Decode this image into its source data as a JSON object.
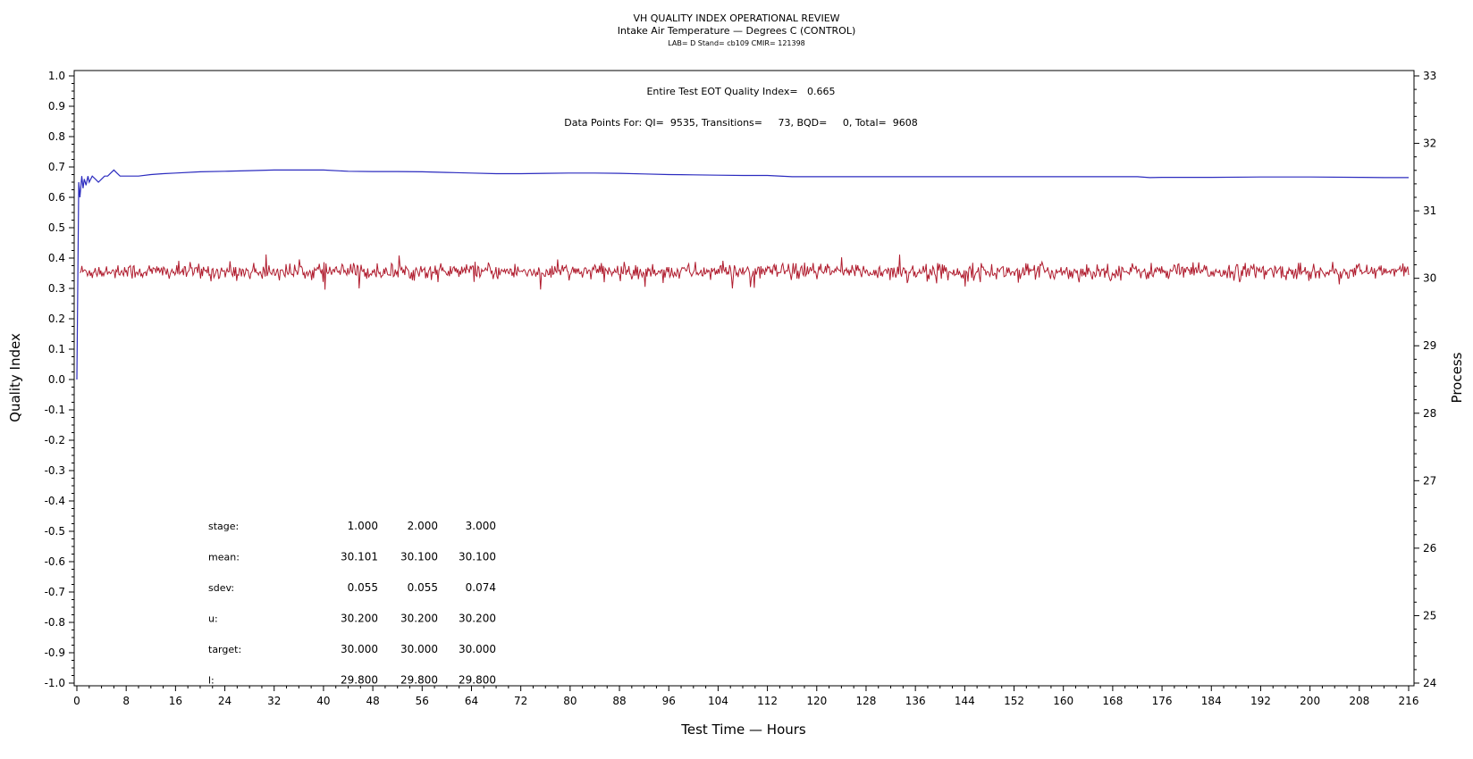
{
  "chart_data": {
    "type": "line",
    "title": "VH QUALITY INDEX OPERATIONAL REVIEW",
    "subtitle": "Intake Air Temperature — Degrees C (CONTROL)",
    "subtitle2": "LAB= D Stand= cb109 CMIR= 121398",
    "xlabel": "Test Time — Hours",
    "ylabel": "Quality Index",
    "y2label": "Process",
    "xlim": [
      0,
      216
    ],
    "ylim": [
      -1.0,
      1.0
    ],
    "y2lim": [
      24,
      33
    ],
    "x_ticks": [
      "0",
      "8",
      "16",
      "24",
      "32",
      "40",
      "48",
      "56",
      "64",
      "72",
      "80",
      "88",
      "96",
      "104",
      "112",
      "120",
      "128",
      "136",
      "144",
      "152",
      "160",
      "168",
      "176",
      "184",
      "192",
      "200",
      "208",
      "216"
    ],
    "y_ticks": [
      "1.0",
      "0.9",
      "0.8",
      "0.7",
      "0.6",
      "0.5",
      "0.4",
      "0.3",
      "0.2",
      "0.1",
      "0.0",
      "-0.1",
      "-0.2",
      "-0.3",
      "-0.4",
      "-0.5",
      "-0.6",
      "-0.7",
      "-0.8",
      "-0.9",
      "-1.0"
    ],
    "y2_ticks": [
      "33",
      "32",
      "31",
      "30",
      "29",
      "28",
      "27",
      "26",
      "25",
      "24"
    ],
    "annotation_qi": "Entire Test EOT Quality Index=   0.665",
    "annotation_points": "Data Points For: QI=  9535, Transitions=     73, BQD=     0, Total=  9608",
    "stats_table": {
      "rows": [
        {
          "label": "stage:",
          "values": [
            "1.000",
            "2.000",
            "3.000"
          ]
        },
        {
          "label": "mean:",
          "values": [
            "30.101",
            "30.100",
            "30.100"
          ]
        },
        {
          "label": "sdev:",
          "values": [
            "0.055",
            "0.055",
            "0.074"
          ]
        },
        {
          "label": "u:",
          "values": [
            "30.200",
            "30.200",
            "30.200"
          ]
        },
        {
          "label": "target:",
          "values": [
            "30.000",
            "30.000",
            "30.000"
          ]
        },
        {
          "label": "l:",
          "values": [
            "29.800",
            "29.800",
            "29.800"
          ]
        }
      ]
    },
    "series": [
      {
        "axis": "left",
        "color": "#2b2bbf",
        "x": [
          0,
          0.3,
          0.5,
          0.8,
          1.0,
          1.2,
          1.5,
          1.8,
          2,
          2.5,
          3,
          3.5,
          4,
          4.5,
          5,
          5.5,
          6,
          6.5,
          7,
          8,
          10,
          12,
          14,
          16,
          20,
          24,
          28,
          32,
          36,
          40,
          44,
          48,
          52,
          56,
          60,
          64,
          68,
          72,
          76,
          80,
          84,
          88,
          92,
          96,
          100,
          104,
          108,
          112,
          116,
          120,
          124,
          128,
          136,
          144,
          152,
          160,
          168,
          172,
          174,
          176,
          184,
          192,
          200,
          208,
          212,
          216
        ],
        "values": [
          0.0,
          0.65,
          0.6,
          0.67,
          0.63,
          0.66,
          0.64,
          0.67,
          0.65,
          0.67,
          0.66,
          0.65,
          0.66,
          0.67,
          0.67,
          0.68,
          0.69,
          0.68,
          0.67,
          0.67,
          0.67,
          0.675,
          0.678,
          0.68,
          0.684,
          0.686,
          0.688,
          0.69,
          0.69,
          0.69,
          0.686,
          0.685,
          0.685,
          0.684,
          0.682,
          0.68,
          0.678,
          0.678,
          0.679,
          0.68,
          0.68,
          0.679,
          0.677,
          0.675,
          0.674,
          0.673,
          0.672,
          0.672,
          0.668,
          0.668,
          0.668,
          0.668,
          0.668,
          0.668,
          0.668,
          0.668,
          0.668,
          0.668,
          0.665,
          0.666,
          0.666,
          0.667,
          0.667,
          0.666,
          0.665,
          0.665
        ]
      },
      {
        "axis": "right",
        "color": "#b01c2e",
        "x_start": 0.5,
        "x_end": 216,
        "mean": 30.1,
        "sdev": 0.06,
        "count": 1400
      }
    ]
  }
}
